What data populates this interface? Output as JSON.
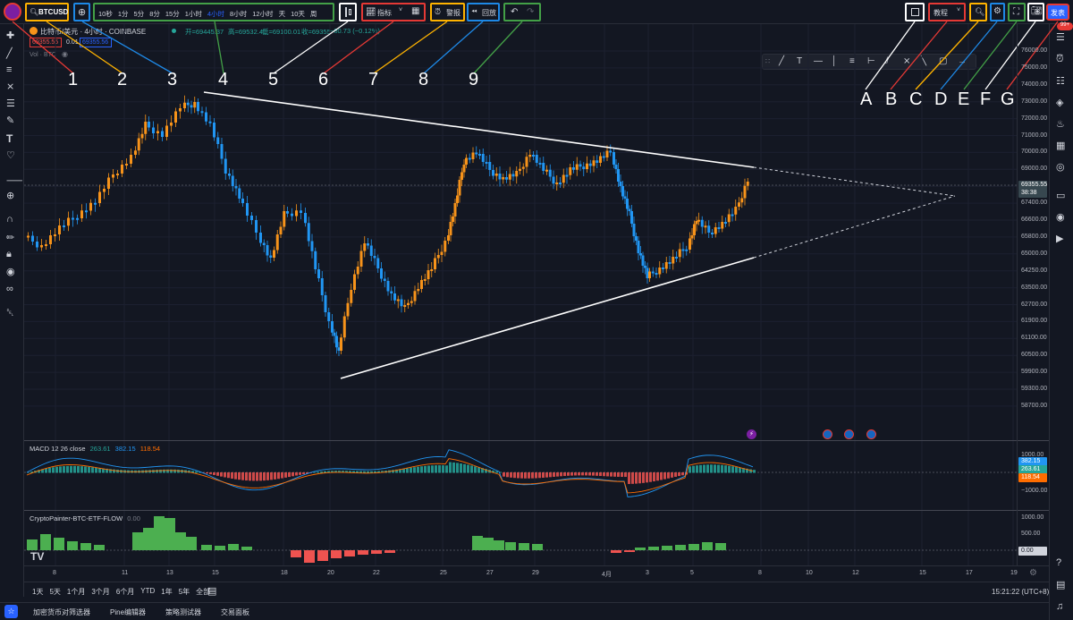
{
  "header": {
    "symbol": "BTCUSD",
    "intervals": [
      "10秒",
      "1分",
      "5分",
      "8分",
      "15分",
      "1小时",
      "4小时",
      "8小时",
      "12小时",
      "天",
      "10天",
      "周"
    ],
    "active_interval": "4小时",
    "indicators_label": "指标",
    "alert_label": "警报",
    "replay_label": "回放",
    "tutorial_label": "教程",
    "publish_label": "发表"
  },
  "legend": {
    "title": "比特币/美元 · 4小时 · COINBASE",
    "open": "开=69445.37",
    "high": "高=69532.41",
    "low": "低=69100.01",
    "close": "收=69355",
    "change": "−80.73 (−0.12%)",
    "sell_price": "69355.55",
    "spread": "0.01",
    "buy_price": "69355.56",
    "volume": "Vol · BTC"
  },
  "macd": {
    "title": "MACD 12 26 close",
    "v1": "263.61",
    "v2": "382.15",
    "v3": "118.54"
  },
  "etf": {
    "title": "CryptoPainter-BTC-ETF-FLOW",
    "value": "0.00"
  },
  "price_axis": [
    "76000.00",
    "75000.00",
    "74000.00",
    "73000.00",
    "72000.00",
    "71000.00",
    "70000.00",
    "69000.00",
    "68200.00",
    "67400.00",
    "66600.00",
    "65800.00",
    "65000.00",
    "64250.00",
    "63500.00",
    "62700.00",
    "61900.00",
    "61100.00",
    "60500.00",
    "59900.00",
    "59300.00",
    "58700.00"
  ],
  "price_tag": {
    "price": "69355.55",
    "countdown": "38:38"
  },
  "macd_axis": {
    "top": "1000.00",
    "bottom": "−1000.00"
  },
  "etf_axis": {
    "top": "1000.00",
    "mid": "500.00",
    "zero": "0.00"
  },
  "time_axis": [
    "8",
    "11",
    "13",
    "15",
    "18",
    "20",
    "22",
    "25",
    "27",
    "29",
    "4月",
    "3",
    "5",
    "8",
    "10",
    "12",
    "15",
    "17",
    "19"
  ],
  "ranges": [
    "1天",
    "5天",
    "1个月",
    "3个月",
    "6个月",
    "YTD",
    "1年",
    "5年",
    "全部"
  ],
  "clock": "15:21:22 (UTC+8)",
  "bottom_tabs": [
    "加密货币对筛选器",
    "Pine编辑器",
    "策略测试器",
    "交易面板"
  ],
  "annotations": {
    "numbers": [
      "1",
      "2",
      "3",
      "4",
      "5",
      "6",
      "7",
      "8",
      "9"
    ],
    "letters": [
      "A",
      "B",
      "C",
      "D",
      "E",
      "F",
      "G"
    ]
  },
  "colors": {
    "up": "#f7931a",
    "down": "#2196f3",
    "red": "#ef5350",
    "green": "#4caf50",
    "macd_up": "#26a69a"
  }
}
